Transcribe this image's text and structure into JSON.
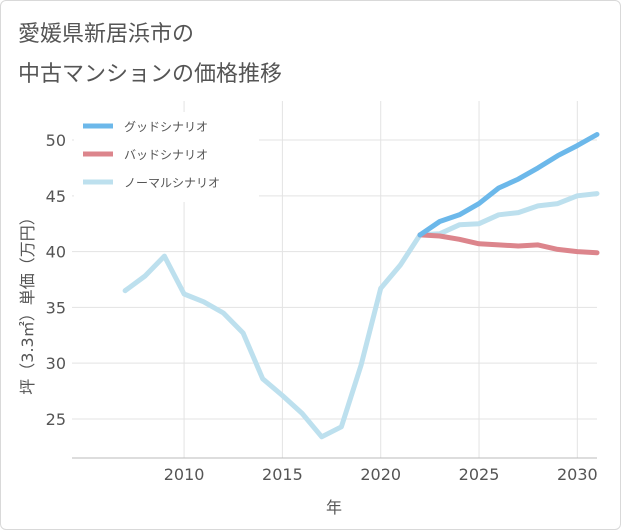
{
  "title_line1": "愛媛県新居浜市の",
  "title_line2": "中古マンションの価格推移",
  "chart_data": {
    "type": "line",
    "xlabel": "年",
    "ylabel": "坪（3.3㎡）単価（万円）",
    "xlim": [
      2004.3,
      2031
    ],
    "ylim": [
      21.5,
      53.5
    ],
    "xticks": [
      2010,
      2015,
      2020,
      2025,
      2030
    ],
    "yticks": [
      25,
      30,
      35,
      40,
      45,
      50
    ],
    "grid": true,
    "legend_position": "top-left",
    "series": [
      {
        "name": "グッドシナリオ",
        "color": "#6cb8ea",
        "x": [
          2022,
          2023,
          2024,
          2025,
          2026,
          2027,
          2028,
          2029,
          2030,
          2031
        ],
        "y": [
          41.5,
          42.7,
          43.3,
          44.3,
          45.7,
          46.5,
          47.5,
          48.6,
          49.5,
          50.5
        ]
      },
      {
        "name": "バッドシナリオ",
        "color": "#dc858c",
        "x": [
          2022,
          2023,
          2024,
          2025,
          2026,
          2027,
          2028,
          2029,
          2030,
          2031
        ],
        "y": [
          41.5,
          41.4,
          41.1,
          40.7,
          40.6,
          40.5,
          40.6,
          40.2,
          40.0,
          39.9
        ]
      },
      {
        "name": "ノーマルシナリオ",
        "color": "#bde0ee",
        "x": [
          2007,
          2008,
          2009,
          2010,
          2011,
          2012,
          2013,
          2014,
          2015,
          2016,
          2017,
          2018,
          2019,
          2020,
          2021,
          2022,
          2023,
          2024,
          2025,
          2026,
          2027,
          2028,
          2029,
          2030,
          2031
        ],
        "y": [
          36.5,
          37.8,
          39.6,
          36.2,
          35.5,
          34.5,
          32.7,
          28.6,
          27.1,
          25.5,
          23.4,
          24.3,
          29.8,
          36.7,
          38.8,
          41.5,
          41.6,
          42.4,
          42.5,
          43.3,
          43.5,
          44.1,
          44.3,
          45.0,
          45.2
        ]
      }
    ]
  }
}
